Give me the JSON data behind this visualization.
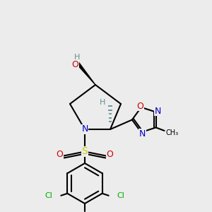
{
  "background_color": "#ececec",
  "bond_color": "#000000",
  "figsize": [
    3.0,
    3.0
  ],
  "dpi": 100,
  "colors": {
    "N": "#0000cc",
    "O": "#cc0000",
    "S": "#cccc00",
    "Cl": "#00aa00",
    "H": "#5f8f8f",
    "C": "#000000"
  }
}
